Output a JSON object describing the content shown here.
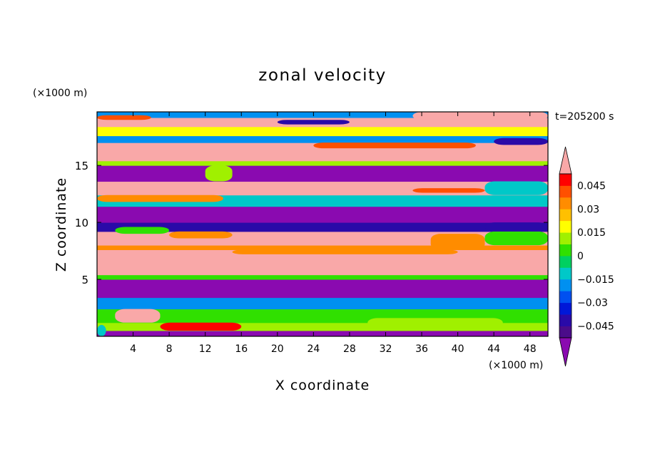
{
  "chart_data": {
    "type": "heatmap",
    "title": "zonal velocity",
    "xlabel": "X coordinate",
    "ylabel": "Z coordinate",
    "x_unit": "(×1000 m)",
    "y_unit": "(×1000 m)",
    "time_label": "t=205200 s",
    "xlim": [
      0,
      50
    ],
    "ylim": [
      0,
      19.7
    ],
    "x_ticks": [
      4,
      8,
      12,
      16,
      20,
      24,
      28,
      32,
      36,
      40,
      44,
      48
    ],
    "y_ticks": [
      5,
      10,
      15
    ],
    "colorbar": {
      "levels": [
        -0.0525,
        -0.045,
        -0.0375,
        -0.03,
        -0.0225,
        -0.015,
        -0.0075,
        0,
        0.0075,
        0.015,
        0.0225,
        0.03,
        0.0375,
        0.045,
        0.0525
      ],
      "tick_values": [
        -0.045,
        -0.03,
        -0.015,
        0,
        0.015,
        0.03,
        0.045
      ],
      "tick_labels": [
        "−0.045",
        "−0.03",
        "−0.015",
        "0",
        "0.015",
        "0.03",
        "0.045"
      ],
      "colors": [
        "#4b0c8a",
        "#2a0aa8",
        "#0018d8",
        "#0050f0",
        "#0090f0",
        "#00c8c8",
        "#00d060",
        "#30e000",
        "#a0f000",
        "#ffff00",
        "#ffc000",
        "#ff8c00",
        "#ff5000",
        "#ff0000"
      ],
      "under_color": "#8a0ab0",
      "over_color": "#f9a8a8"
    },
    "bands": [
      {
        "z_from": 0.0,
        "z_to": 0.5,
        "value": -0.06
      },
      {
        "z_from": 0.5,
        "z_to": 1.2,
        "value": 0.01
      },
      {
        "z_from": 1.2,
        "z_to": 2.4,
        "value": 0.004
      },
      {
        "z_from": 2.4,
        "z_to": 3.4,
        "value": -0.02
      },
      {
        "z_from": 3.4,
        "z_to": 5.0,
        "value": -0.06
      },
      {
        "z_from": 5.0,
        "z_to": 5.4,
        "value": 0.0
      },
      {
        "z_from": 5.4,
        "z_to": 7.6,
        "value": 0.06
      },
      {
        "z_from": 7.6,
        "z_to": 8.0,
        "value": 0.035
      },
      {
        "z_from": 8.0,
        "z_to": 9.2,
        "value": 0.06
      },
      {
        "z_from": 9.2,
        "z_to": 10.0,
        "value": -0.04
      },
      {
        "z_from": 10.0,
        "z_to": 11.4,
        "value": -0.06
      },
      {
        "z_from": 11.4,
        "z_to": 12.4,
        "value": -0.01
      },
      {
        "z_from": 12.4,
        "z_to": 13.6,
        "value": 0.06
      },
      {
        "z_from": 13.6,
        "z_to": 15.0,
        "value": -0.06
      },
      {
        "z_from": 15.0,
        "z_to": 15.4,
        "value": 0.01
      },
      {
        "z_from": 15.4,
        "z_to": 17.0,
        "value": 0.06
      },
      {
        "z_from": 17.0,
        "z_to": 17.6,
        "value": -0.02
      },
      {
        "z_from": 17.6,
        "z_to": 18.4,
        "value": 0.02
      },
      {
        "z_from": 18.4,
        "z_to": 19.2,
        "value": 0.06
      },
      {
        "z_from": 19.2,
        "z_to": 19.7,
        "value": -0.02
      }
    ],
    "features": [
      {
        "x_from": 2,
        "x_to": 7,
        "z_from": 1.2,
        "z_to": 2.4,
        "value": 0.06
      },
      {
        "x_from": 7,
        "x_to": 16,
        "z_from": 0.5,
        "z_to": 1.2,
        "value": 0.045
      },
      {
        "x_from": 30,
        "x_to": 45,
        "z_from": 0.8,
        "z_to": 1.6,
        "value": 0.01
      },
      {
        "x_from": 0,
        "x_to": 1,
        "z_from": 0.0,
        "z_to": 1.0,
        "value": -0.015
      },
      {
        "x_from": 15,
        "x_to": 40,
        "z_from": 7.2,
        "z_to": 7.6,
        "value": 0.03
      },
      {
        "x_from": 37,
        "x_to": 43,
        "z_from": 7.6,
        "z_to": 9.0,
        "value": 0.03
      },
      {
        "x_from": 43,
        "x_to": 50,
        "z_from": 8.0,
        "z_to": 9.2,
        "value": 0.0
      },
      {
        "x_from": 2,
        "x_to": 8,
        "z_from": 9.0,
        "z_to": 9.6,
        "value": 0.0
      },
      {
        "x_from": 8,
        "x_to": 15,
        "z_from": 8.6,
        "z_to": 9.2,
        "value": 0.03
      },
      {
        "x_from": 43,
        "x_to": 50,
        "z_from": 9.2,
        "z_to": 10.0,
        "value": -0.045
      },
      {
        "x_from": 0,
        "x_to": 14,
        "z_from": 11.8,
        "z_to": 12.4,
        "value": 0.03
      },
      {
        "x_from": 35,
        "x_to": 43,
        "z_from": 12.6,
        "z_to": 13.0,
        "value": 0.04
      },
      {
        "x_from": 43,
        "x_to": 50,
        "z_from": 12.4,
        "z_to": 13.6,
        "value": -0.01
      },
      {
        "x_from": 12,
        "x_to": 15,
        "z_from": 13.6,
        "z_to": 15.0,
        "value": 0.01
      },
      {
        "x_from": 24,
        "x_to": 42,
        "z_from": 16.5,
        "z_to": 17.0,
        "value": 0.04
      },
      {
        "x_from": 44,
        "x_to": 50,
        "z_from": 16.8,
        "z_to": 17.4,
        "value": -0.045
      },
      {
        "x_from": 20,
        "x_to": 28,
        "z_from": 18.6,
        "z_to": 19.0,
        "value": -0.045
      },
      {
        "x_from": 0,
        "x_to": 6,
        "z_from": 19.0,
        "z_to": 19.4,
        "value": 0.04
      },
      {
        "x_from": 35,
        "x_to": 50,
        "z_from": 19.0,
        "z_to": 19.7,
        "value": 0.06
      }
    ]
  }
}
